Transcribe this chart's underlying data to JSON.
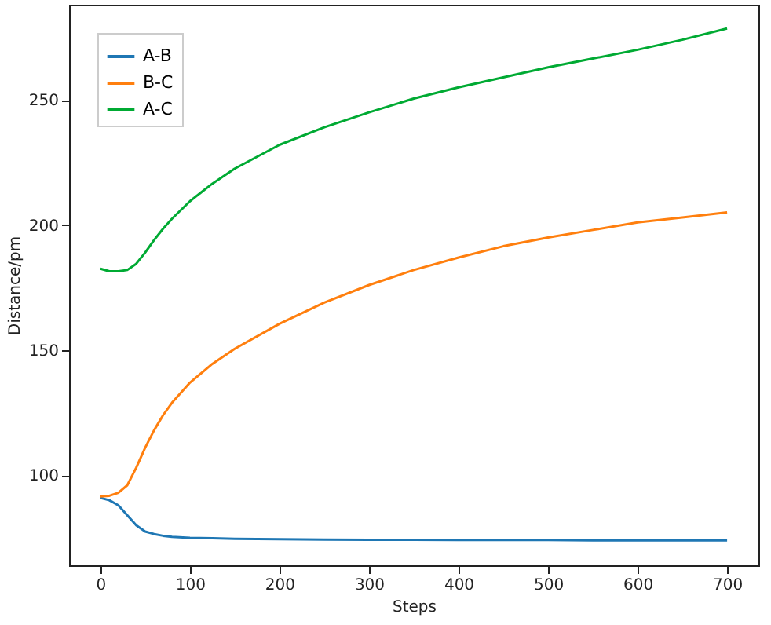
{
  "chart_data": {
    "type": "line",
    "xlabel": "Steps",
    "ylabel": "Distance/pm",
    "x": [
      0,
      10,
      20,
      30,
      40,
      50,
      60,
      70,
      80,
      100,
      125,
      150,
      200,
      250,
      300,
      350,
      400,
      450,
      500,
      550,
      600,
      650,
      700
    ],
    "series": [
      {
        "name": "A-B",
        "color": "#1f77b4",
        "values": [
          91,
          90,
          88,
          84,
          80,
          77.5,
          76.5,
          75.8,
          75.4,
          75,
          74.8,
          74.6,
          74.4,
          74.3,
          74.2,
          74.2,
          74.1,
          74.1,
          74.1,
          74,
          74,
          74,
          74
        ]
      },
      {
        "name": "B-C",
        "color": "#ff7f0e",
        "values": [
          91.5,
          91.8,
          93,
          96,
          103,
          111,
          118,
          124,
          129,
          137,
          144.5,
          150.5,
          160.5,
          169,
          176,
          182,
          187,
          191.5,
          195,
          198,
          201,
          203,
          205
        ]
      },
      {
        "name": "A-C",
        "color": "#00aa33",
        "values": [
          182.5,
          181.5,
          181.5,
          182,
          184.5,
          189,
          194,
          198.5,
          202.5,
          209.5,
          216.5,
          222.5,
          232,
          239,
          245,
          250.5,
          255,
          259,
          263,
          266.5,
          270,
          274,
          278.5
        ]
      }
    ],
    "xlim": [
      -35,
      735
    ],
    "ylim": [
      64,
      288
    ],
    "xticks": [
      0,
      100,
      200,
      300,
      400,
      500,
      600,
      700
    ],
    "yticks": [
      100,
      150,
      200,
      250
    ],
    "grid": false,
    "legend": "top left",
    "marker": "none",
    "line_style": "solid"
  }
}
